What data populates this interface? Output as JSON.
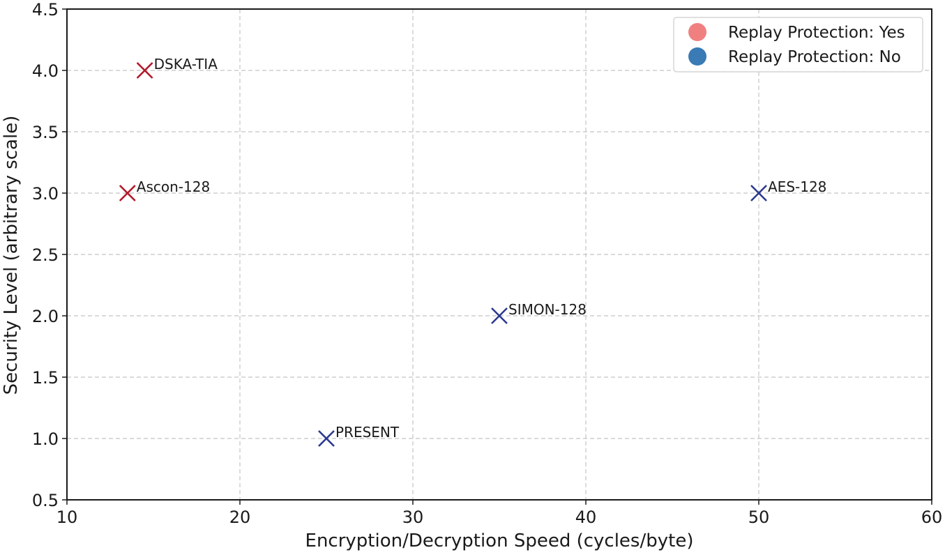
{
  "chart_data": {
    "type": "scatter",
    "title": "",
    "xlabel": "Encryption/Decryption Speed (cycles/byte)",
    "ylabel": "Security Level (arbitrary scale)",
    "xlim": [
      10,
      60
    ],
    "ylim": [
      0.5,
      4.5
    ],
    "xticks": [
      10,
      20,
      30,
      40,
      50,
      60
    ],
    "yticks": [
      0.5,
      1.0,
      1.5,
      2.0,
      2.5,
      3.0,
      3.5,
      4.0,
      4.5
    ],
    "xtick_labels": [
      "10",
      "20",
      "30",
      "40",
      "50",
      "60"
    ],
    "ytick_labels": [
      "0.5",
      "1.0",
      "1.5",
      "2.0",
      "2.5",
      "3.0",
      "3.5",
      "4.0",
      "4.5"
    ],
    "grid": true,
    "grid_style": "dashed",
    "marker": "x",
    "legend_position": "top-right",
    "series": [
      {
        "name": "Replay Protection: Yes",
        "color": "#b2182b",
        "legend_color": "#f08080",
        "points": [
          {
            "label": "DSKA-TIA",
            "x": 14.5,
            "y": 4.0
          },
          {
            "label": "Ascon-128",
            "x": 13.5,
            "y": 3.0
          }
        ]
      },
      {
        "name": "Replay Protection: No",
        "color": "#2b3a8f",
        "legend_color": "#3a7ab5",
        "points": [
          {
            "label": "AES-128",
            "x": 50,
            "y": 3.0
          },
          {
            "label": "SIMON-128",
            "x": 35,
            "y": 2.0
          },
          {
            "label": "PRESENT",
            "x": 25,
            "y": 1.0
          }
        ]
      }
    ]
  }
}
